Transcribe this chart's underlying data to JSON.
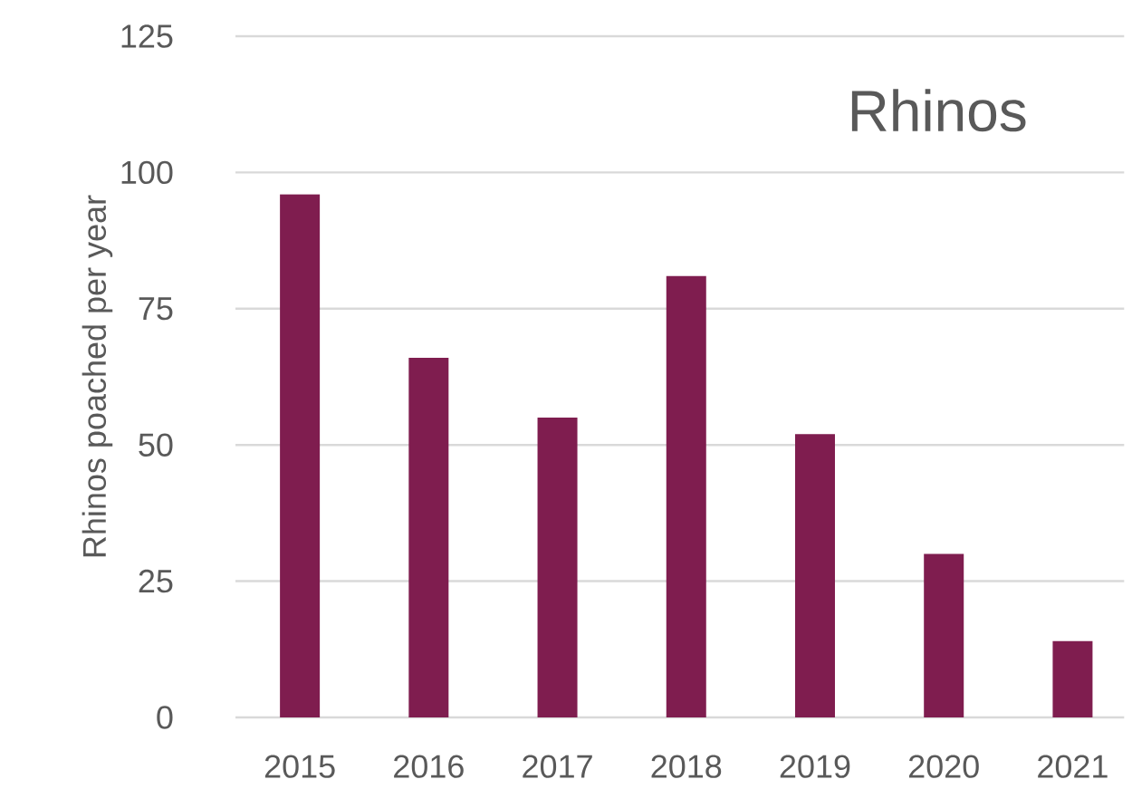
{
  "chart_data": {
    "type": "bar",
    "title": "Rhinos",
    "ylabel": "Rhinos poached per year",
    "categories": [
      "2015",
      "2016",
      "2017",
      "2018",
      "2019",
      "2020",
      "2021"
    ],
    "values": [
      96,
      66,
      55,
      81,
      52,
      30,
      14
    ],
    "color": "#7f1d4f",
    "ylim": [
      0,
      125
    ],
    "yticks": [
      0,
      25,
      50,
      75,
      100,
      125
    ],
    "grid": "y"
  }
}
